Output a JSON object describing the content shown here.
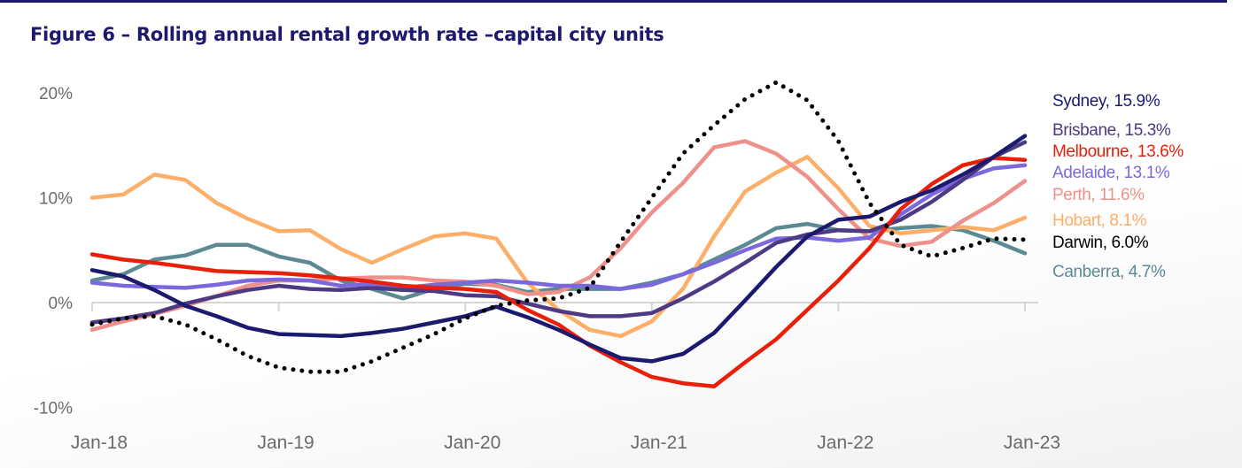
{
  "chart_data": {
    "type": "line",
    "title": "Figure 6 – Rolling annual rental growth rate –capital city units",
    "xlabel": "",
    "ylabel": "",
    "ylim": [
      -10,
      20
    ],
    "y_ticks": [
      "20%",
      "10%",
      "0%",
      "-10%"
    ],
    "y_tick_values": [
      20,
      10,
      0,
      -10
    ],
    "x_tick_labels": [
      "Jan-18",
      "Jan-19",
      "Jan-20",
      "Jan-21",
      "Jan-22",
      "Jan-23"
    ],
    "grid": false,
    "legend": "direct labels at right end of lines",
    "x": [
      "Jan-18",
      "Mar-18",
      "May-18",
      "Jul-18",
      "Sep-18",
      "Nov-18",
      "Jan-19",
      "Mar-19",
      "May-19",
      "Jul-19",
      "Sep-19",
      "Nov-19",
      "Jan-20",
      "Mar-20",
      "May-20",
      "Jul-20",
      "Sep-20",
      "Nov-20",
      "Jan-21",
      "Mar-21",
      "May-21",
      "Jul-21",
      "Sep-21",
      "Nov-21",
      "Jan-22",
      "Mar-22",
      "May-22",
      "Jul-22",
      "Sep-22",
      "Nov-22",
      "Jan-23"
    ],
    "series": [
      {
        "name": "Sydney",
        "label": "Sydney, 15.9%",
        "color": "#1b1a6e",
        "dashed": false,
        "values": [
          3.1,
          2.5,
          1.2,
          -0.3,
          -1.3,
          -2.4,
          -3.0,
          -3.1,
          -3.2,
          -2.9,
          -2.5,
          -1.9,
          -1.3,
          -0.4,
          -1.4,
          -2.6,
          -4.0,
          -5.3,
          -5.6,
          -4.9,
          -2.9,
          0.2,
          3.4,
          6.3,
          7.9,
          8.2,
          9.6,
          10.7,
          12.2,
          13.9,
          15.9
        ]
      },
      {
        "name": "Brisbane",
        "label": "Brisbane, 15.3%",
        "color": "#4e3a82",
        "dashed": false,
        "values": [
          -1.9,
          -1.5,
          -1.0,
          -0.1,
          0.6,
          1.2,
          1.6,
          1.3,
          1.2,
          1.4,
          1.2,
          1.1,
          0.7,
          0.6,
          -0.1,
          -0.8,
          -1.3,
          -1.3,
          -1.0,
          0.4,
          2.0,
          3.8,
          5.7,
          6.5,
          6.9,
          6.8,
          7.9,
          9.6,
          11.7,
          13.9,
          15.3
        ]
      },
      {
        "name": "Melbourne",
        "label": "Melbourne, 13.6%",
        "color": "#e8200a",
        "dashed": false,
        "values": [
          4.6,
          4.1,
          3.8,
          3.4,
          3.0,
          2.9,
          2.8,
          2.6,
          2.3,
          2.0,
          1.6,
          1.4,
          1.3,
          1.0,
          -0.7,
          -2.1,
          -4.1,
          -5.7,
          -7.1,
          -7.7,
          -8.0,
          -5.7,
          -3.5,
          -0.7,
          2.1,
          5.2,
          8.9,
          11.3,
          13.1,
          13.8,
          13.6
        ]
      },
      {
        "name": "Adelaide",
        "label": "Adelaide, 13.1%",
        "color": "#7b68dd",
        "dashed": false,
        "values": [
          1.9,
          1.6,
          1.5,
          1.4,
          1.7,
          2.1,
          2.2,
          2.1,
          1.6,
          1.8,
          1.4,
          1.7,
          1.9,
          2.1,
          1.9,
          1.6,
          1.6,
          1.3,
          1.7,
          2.7,
          3.8,
          5.0,
          6.1,
          6.2,
          5.9,
          6.2,
          8.4,
          10.3,
          11.8,
          12.8,
          13.1
        ]
      },
      {
        "name": "Perth",
        "label": "Perth, 11.6%",
        "color": "#ef918a",
        "dashed": false,
        "values": [
          -2.6,
          -1.8,
          -1.1,
          -0.3,
          0.6,
          1.6,
          2.1,
          2.1,
          2.3,
          2.4,
          2.4,
          2.1,
          2.0,
          1.6,
          0.8,
          1.0,
          2.4,
          5.2,
          8.6,
          11.4,
          14.8,
          15.4,
          14.2,
          12.0,
          8.9,
          6.1,
          5.4,
          5.8,
          7.8,
          9.5,
          11.6
        ]
      },
      {
        "name": "Hobart",
        "label": "Hobart, 8.1%",
        "color": "#fdae68",
        "dashed": false,
        "values": [
          10.0,
          10.3,
          12.2,
          11.7,
          9.5,
          8.0,
          6.8,
          6.9,
          5.1,
          3.8,
          5.1,
          6.3,
          6.6,
          6.1,
          1.9,
          -0.7,
          -2.6,
          -3.2,
          -1.8,
          1.3,
          6.3,
          10.6,
          12.4,
          13.9,
          10.9,
          7.3,
          6.6,
          6.9,
          7.2,
          6.9,
          8.1
        ]
      },
      {
        "name": "Darwin",
        "label": "Darwin, 6.0%",
        "color": "#000000",
        "dashed": true,
        "values": [
          -2.1,
          -1.5,
          -1.3,
          -2.1,
          -3.5,
          -5.1,
          -6.2,
          -6.6,
          -6.6,
          -5.6,
          -4.3,
          -3.0,
          -1.5,
          -0.3,
          0.2,
          0.4,
          1.4,
          5.8,
          10.0,
          14.2,
          16.9,
          19.4,
          21.0,
          19.3,
          15.4,
          9.5,
          5.5,
          4.4,
          5.2,
          6.1,
          6.0
        ]
      },
      {
        "name": "Canberra",
        "label": "Canberra, 4.7%",
        "color": "#5b8a95",
        "dashed": false,
        "values": [
          2.1,
          2.7,
          4.1,
          4.5,
          5.5,
          5.5,
          4.4,
          3.8,
          2.1,
          1.3,
          0.4,
          1.3,
          1.8,
          1.7,
          1.0,
          1.3,
          1.3,
          1.3,
          1.9,
          2.7,
          4.1,
          5.5,
          7.1,
          7.5,
          6.9,
          6.8,
          7.1,
          7.3,
          6.9,
          5.9,
          4.7
        ]
      }
    ]
  }
}
